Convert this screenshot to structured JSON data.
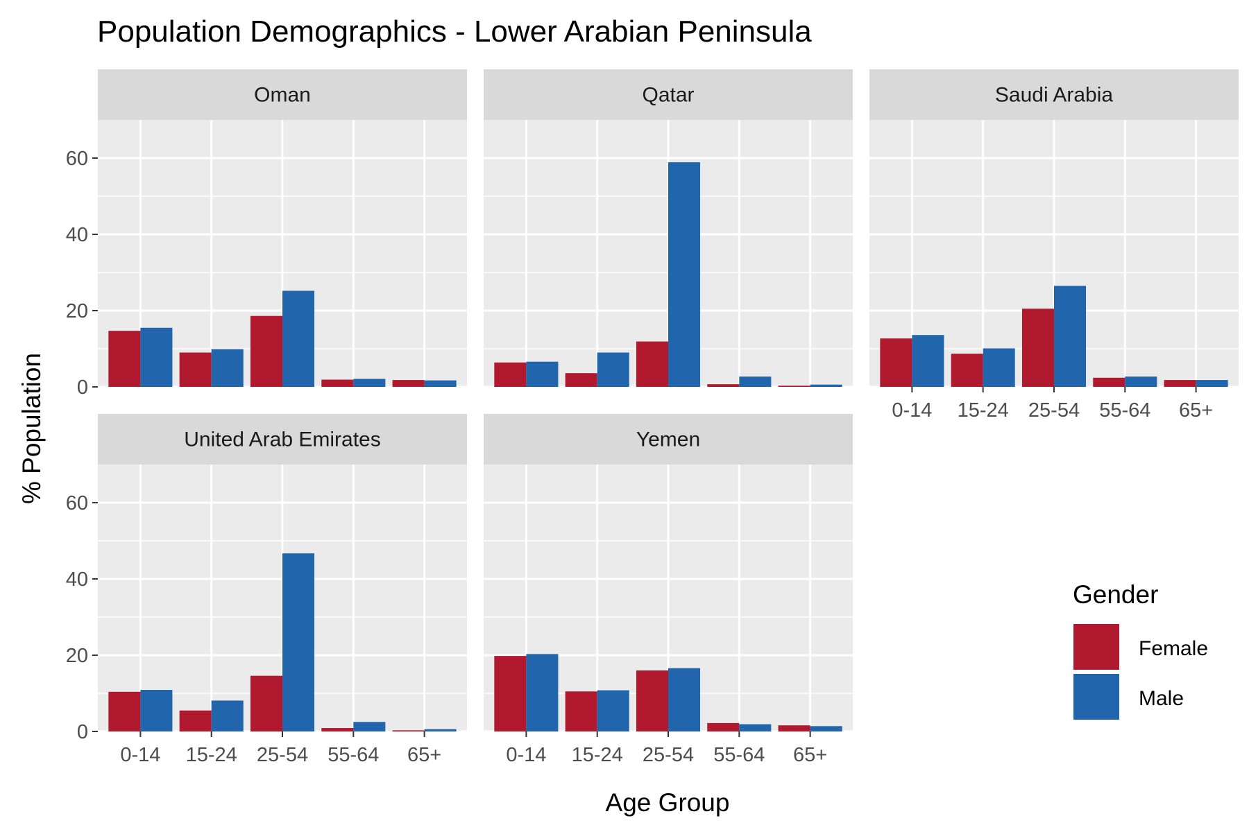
{
  "chart_data": {
    "type": "bar",
    "title": "Population Demographics - Lower Arabian Peninsula",
    "xlabel": "Age Group",
    "ylabel": "% Population",
    "ylim": [
      0,
      70
    ],
    "yticks": [
      0,
      20,
      40,
      60
    ],
    "grid": true,
    "categories": [
      "0-14",
      "15-24",
      "25-54",
      "55-64",
      "65+"
    ],
    "legend": {
      "title": "Gender",
      "position": "right",
      "entries": [
        "Female",
        "Male"
      ]
    },
    "colors": {
      "Female": "#B0192E",
      "Male": "#2166AC"
    },
    "facets": [
      {
        "name": "Oman",
        "series": [
          {
            "name": "Female",
            "values": [
              14.7,
              9.0,
              18.6,
              1.9,
              1.8
            ]
          },
          {
            "name": "Male",
            "values": [
              15.5,
              9.9,
              25.2,
              2.1,
              1.7
            ]
          }
        ]
      },
      {
        "name": "Qatar",
        "series": [
          {
            "name": "Female",
            "values": [
              6.4,
              3.6,
              11.9,
              0.7,
              0.3
            ]
          },
          {
            "name": "Male",
            "values": [
              6.6,
              9.0,
              58.9,
              2.7,
              0.6
            ]
          }
        ]
      },
      {
        "name": "Saudi Arabia",
        "series": [
          {
            "name": "Female",
            "values": [
              12.7,
              8.7,
              20.5,
              2.4,
              1.8
            ]
          },
          {
            "name": "Male",
            "values": [
              13.6,
              10.1,
              26.5,
              2.7,
              1.8
            ]
          }
        ]
      },
      {
        "name": "United Arab Emirates",
        "series": [
          {
            "name": "Female",
            "values": [
              10.4,
              5.5,
              14.6,
              0.9,
              0.3
            ]
          },
          {
            "name": "Male",
            "values": [
              10.9,
              8.1,
              46.7,
              2.5,
              0.6
            ]
          }
        ]
      },
      {
        "name": "Yemen",
        "series": [
          {
            "name": "Female",
            "values": [
              19.8,
              10.5,
              16.0,
              2.2,
              1.6
            ]
          },
          {
            "name": "Male",
            "values": [
              20.3,
              10.8,
              16.6,
              1.9,
              1.4
            ]
          }
        ]
      }
    ]
  }
}
